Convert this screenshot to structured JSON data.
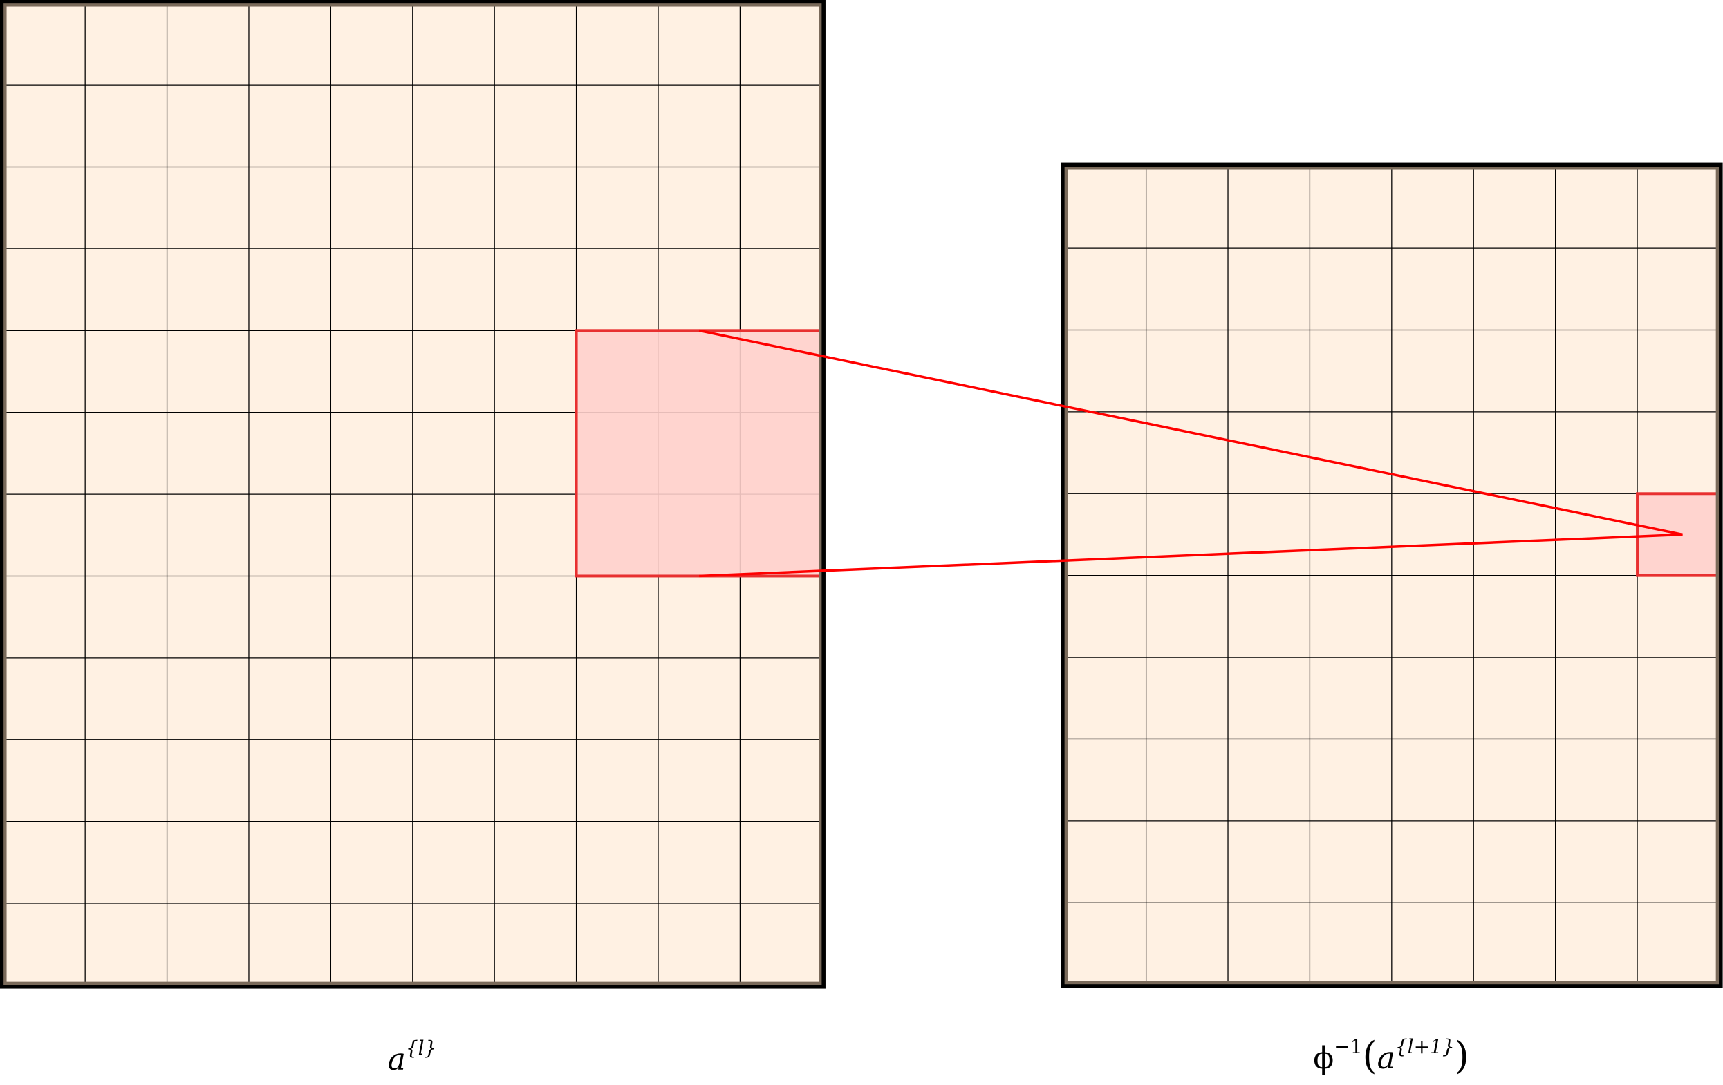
{
  "colors": {
    "cell_fill": "#fff1e3",
    "grid_line": "#000000",
    "frame": "#000000",
    "frame_inner": "#7a6a5a",
    "highlight_fill": "#ffd0cc",
    "highlight_stroke": "#e83030",
    "connector": "#ff0000"
  },
  "grids": [
    {
      "name": "left",
      "cols": 10,
      "rows": 12,
      "highlight": {
        "col": 7,
        "row": 4,
        "cols": 3,
        "rows": 3
      }
    },
    {
      "name": "right",
      "cols": 8,
      "rows": 10,
      "highlight": {
        "col": 7,
        "row": 4,
        "cols": 1,
        "rows": 1
      }
    }
  ],
  "labels": {
    "left": {
      "base": "a",
      "sup": "{l}"
    },
    "right": {
      "func": "ϕ",
      "func_sup": "−1",
      "open": "(",
      "base": "a",
      "sup": "{l+1}",
      "close": ")"
    }
  }
}
